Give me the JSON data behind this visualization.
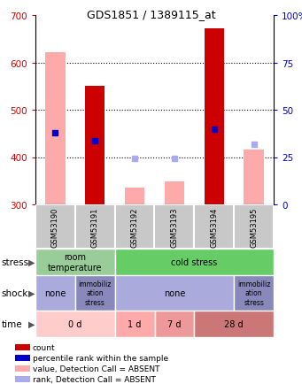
{
  "title": "GDS1851 / 1389115_at",
  "samples": [
    "GSM53190",
    "GSM53191",
    "GSM53192",
    "GSM53193",
    "GSM53194",
    "GSM53195"
  ],
  "ylim": [
    300,
    700
  ],
  "yticks_left": [
    300,
    400,
    500,
    600,
    700
  ],
  "bar_values": [
    null,
    551,
    null,
    null,
    672,
    null
  ],
  "bar_absent_values": [
    621,
    null,
    336,
    348,
    null,
    415
  ],
  "rank_values": [
    451,
    435,
    null,
    null,
    458,
    null
  ],
  "rank_absent_values": [
    null,
    null,
    398,
    398,
    null,
    428
  ],
  "bar_color": "#cc0000",
  "bar_absent_color": "#ffaaaa",
  "rank_color": "#0000cc",
  "rank_absent_color": "#aaaaee",
  "sample_box_color": "#c8c8c8",
  "stress_room_color": "#99cc99",
  "stress_cold_color": "#66cc66",
  "shock_none_color": "#aaaadd",
  "shock_immob_color": "#8888bb",
  "time_0d_color": "#ffcccc",
  "time_1d_color": "#ffaaaa",
  "time_7d_color": "#ee9999",
  "time_28d_color": "#cc7777",
  "legend_items": [
    {
      "color": "#cc0000",
      "label": "count"
    },
    {
      "color": "#0000cc",
      "label": "percentile rank within the sample"
    },
    {
      "color": "#ffaaaa",
      "label": "value, Detection Call = ABSENT"
    },
    {
      "color": "#aaaaee",
      "label": "rank, Detection Call = ABSENT"
    }
  ]
}
